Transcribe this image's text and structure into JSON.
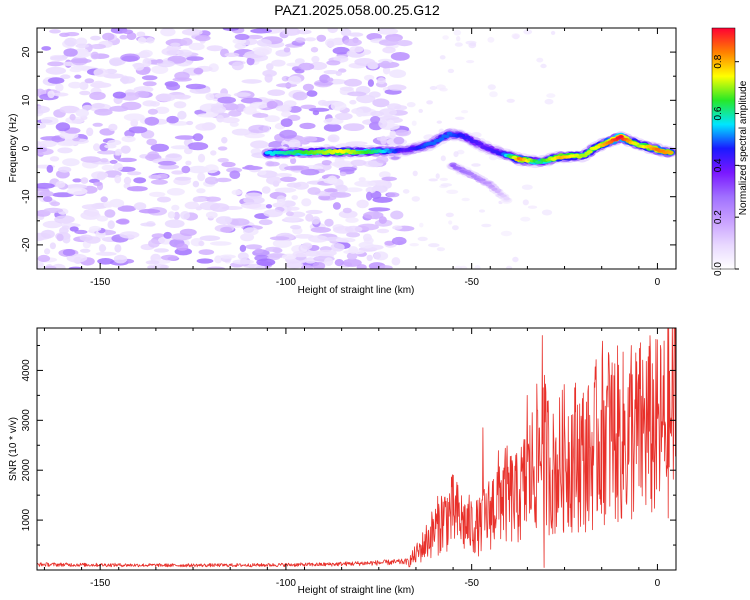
{
  "title": "PAZ1.2025.058.00.25.G12",
  "colors": {
    "snr_line": "#e8302a",
    "frame": "#000000",
    "background": "#ffffff",
    "colormap": [
      "#ffffff",
      "#e8d8ff",
      "#c8a0ff",
      "#a070ff",
      "#7a18ff",
      "#1a1aff",
      "#00e6ff",
      "#27e827",
      "#ffff00",
      "#ff7f00",
      "#ff0033"
    ]
  },
  "chart_data": [
    {
      "type": "heatmap",
      "xlabel": "Height of straight line (km)",
      "ylabel": "Frequency (Hz)",
      "xlim": [
        -167,
        5
      ],
      "ylim": [
        -25,
        25
      ],
      "xticks": [
        -150,
        -100,
        -50,
        0
      ],
      "yticks": [
        -20,
        -10,
        0,
        10,
        20
      ],
      "colorbar": {
        "label": "Normalized spectral amplitude",
        "range": [
          0,
          0.93
        ],
        "ticks": [
          "0.0",
          "0.2",
          "0.4",
          "0.6",
          "0.8"
        ]
      },
      "ridge": [
        {
          "x": -105,
          "y": -1.0,
          "amp": 0.55
        },
        {
          "x": -95,
          "y": -0.8,
          "amp": 0.65
        },
        {
          "x": -85,
          "y": -0.7,
          "amp": 0.75
        },
        {
          "x": -75,
          "y": -0.6,
          "amp": 0.6
        },
        {
          "x": -68,
          "y": -0.4,
          "amp": 0.4
        },
        {
          "x": -62,
          "y": 0.6,
          "amp": 0.5
        },
        {
          "x": -56,
          "y": 3.0,
          "amp": 0.5
        },
        {
          "x": -52,
          "y": 2.5,
          "amp": 0.45
        },
        {
          "x": -47,
          "y": 0.5,
          "amp": 0.4
        },
        {
          "x": -42,
          "y": -1.0,
          "amp": 0.45
        },
        {
          "x": -37,
          "y": -2.3,
          "amp": 0.85
        },
        {
          "x": -32,
          "y": -2.8,
          "amp": 0.6
        },
        {
          "x": -26,
          "y": -1.7,
          "amp": 0.8
        },
        {
          "x": -20,
          "y": -1.5,
          "amp": 0.7
        },
        {
          "x": -16,
          "y": 0.5,
          "amp": 0.75
        },
        {
          "x": -10,
          "y": 2.4,
          "amp": 0.93
        },
        {
          "x": -5,
          "y": 0.8,
          "amp": 0.7
        },
        {
          "x": 0,
          "y": -0.2,
          "amp": 0.85
        },
        {
          "x": 4,
          "y": -1.0,
          "amp": 0.8
        }
      ],
      "side_branch": [
        {
          "x": -55,
          "y": -3.5,
          "amp": 0.3
        },
        {
          "x": -50,
          "y": -5.5,
          "amp": 0.25
        },
        {
          "x": -45,
          "y": -7.5,
          "amp": 0.2
        },
        {
          "x": -40,
          "y": -11,
          "amp": 0.08
        }
      ],
      "noise_region": {
        "x": [
          -167,
          -68
        ],
        "y": [
          -25,
          25
        ],
        "amp": 0.25
      }
    },
    {
      "type": "line",
      "xlabel": "Height of straight line (km)",
      "ylabel": "SNR (10 * v/v)",
      "xlim": [
        -167,
        5
      ],
      "ylim": [
        0,
        4850
      ],
      "xticks": [
        -150,
        -100,
        -50,
        0
      ],
      "yticks": [
        1000,
        2000,
        3000,
        4000
      ],
      "series": [
        {
          "values_envelope": [
            {
              "x": -167,
              "y": 130
            },
            {
              "x": -150,
              "y": 120
            },
            {
              "x": -130,
              "y": 110
            },
            {
              "x": -110,
              "y": 115
            },
            {
              "x": -90,
              "y": 130
            },
            {
              "x": -75,
              "y": 170
            },
            {
              "x": -67,
              "y": 200
            },
            {
              "x": -64,
              "y": 500
            },
            {
              "x": -61,
              "y": 900
            },
            {
              "x": -58,
              "y": 1300
            },
            {
              "x": -55,
              "y": 1500
            },
            {
              "x": -52,
              "y": 1200
            },
            {
              "x": -48,
              "y": 1100
            },
            {
              "x": -45,
              "y": 1500
            },
            {
              "x": -42,
              "y": 2000
            },
            {
              "x": -38,
              "y": 1800
            },
            {
              "x": -35,
              "y": 2300
            },
            {
              "x": -31,
              "y": 3200
            },
            {
              "x": -28,
              "y": 2500
            },
            {
              "x": -25,
              "y": 2900
            },
            {
              "x": -22,
              "y": 3000
            },
            {
              "x": -18,
              "y": 2900
            },
            {
              "x": -15,
              "y": 3600
            },
            {
              "x": -12,
              "y": 3500
            },
            {
              "x": -9,
              "y": 3400
            },
            {
              "x": -6,
              "y": 3500
            },
            {
              "x": -3,
              "y": 3700
            },
            {
              "x": 0,
              "y": 3600
            },
            {
              "x": 3,
              "y": 3800
            },
            {
              "x": 5,
              "y": 4300
            }
          ],
          "peaks": [
            {
              "x": -31,
              "y": 4700
            },
            {
              "x": -30.5,
              "y": 50
            },
            {
              "x": -47,
              "y": 2850
            },
            {
              "x": -35,
              "y": 3500
            },
            {
              "x": -13,
              "y": 4300
            },
            {
              "x": -7,
              "y": 4500
            },
            {
              "x": 4.5,
              "y": 4850
            }
          ]
        }
      ]
    }
  ]
}
